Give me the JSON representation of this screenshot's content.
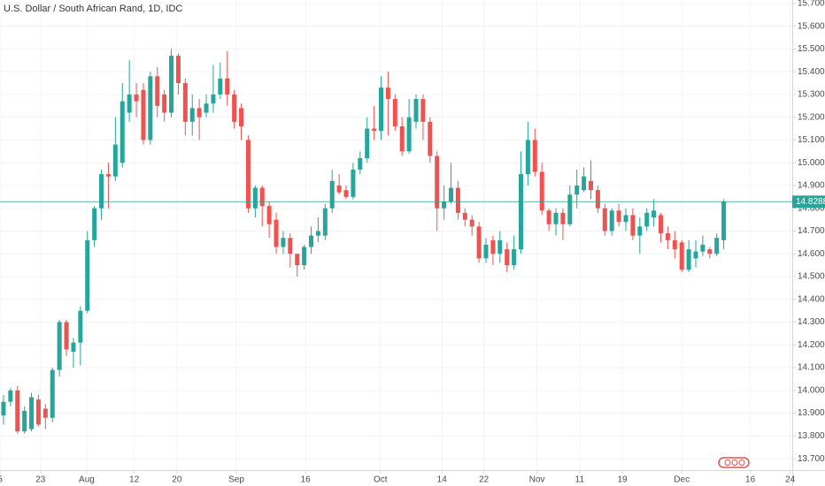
{
  "chart_data": {
    "type": "candlestick",
    "title": "U.S. Dollar / South African Rand, 1D, IDC",
    "up_color": "#26a69a",
    "down_color": "#ef5350",
    "grid": true,
    "candles": {
      "open": [
        13.89,
        13.95,
        14.0,
        13.82,
        13.83,
        13.96,
        13.92,
        13.88,
        14.09,
        14.3,
        14.17,
        14.21,
        14.35,
        14.66,
        14.8,
        14.95,
        14.94,
        15.0,
        15.22,
        15.3,
        15.32,
        15.1,
        15.38,
        15.3,
        15.22,
        15.47,
        15.35,
        15.18,
        15.24,
        15.22,
        15.26,
        15.3,
        15.37,
        15.3,
        15.24,
        15.1,
        14.8,
        14.89,
        14.81,
        14.75,
        14.63,
        14.67,
        14.6,
        14.55,
        14.63,
        14.68,
        14.68,
        14.8,
        14.9,
        14.88,
        14.85,
        14.97,
        15.02,
        15.15,
        15.14,
        15.33,
        15.28,
        15.16,
        15.05,
        15.18,
        15.28,
        15.18,
        15.03,
        14.8,
        14.83,
        14.89,
        14.78,
        14.75,
        14.72,
        14.58,
        14.66,
        14.6,
        14.62,
        14.55,
        14.62,
        14.95,
        15.1,
        14.96,
        14.79,
        14.73,
        14.78,
        14.73,
        14.86,
        14.88,
        14.92,
        14.88,
        14.8,
        14.7,
        14.79,
        14.74,
        14.77,
        14.68,
        14.72,
        14.76,
        14.77,
        14.69,
        14.66,
        14.65,
        14.53,
        14.58,
        14.61,
        14.62,
        14.6,
        14.66
      ],
      "high": [
        13.98,
        14.01,
        14.02,
        13.93,
        13.99,
        13.98,
        13.94,
        14.1,
        14.31,
        14.31,
        14.23,
        14.37,
        14.7,
        14.81,
        14.97,
        15.0,
        15.2,
        15.35,
        15.45,
        15.35,
        15.35,
        15.4,
        15.42,
        15.32,
        15.5,
        15.48,
        15.37,
        15.3,
        15.28,
        15.3,
        15.43,
        15.44,
        15.49,
        15.32,
        15.26,
        15.12,
        14.9,
        14.9,
        14.83,
        14.78,
        14.7,
        14.69,
        14.6,
        14.64,
        14.72,
        14.76,
        14.82,
        14.97,
        14.95,
        14.9,
        15.0,
        15.05,
        15.2,
        15.25,
        15.38,
        15.4,
        15.3,
        15.2,
        15.28,
        15.3,
        15.3,
        15.2,
        15.05,
        14.9,
        15.0,
        14.92,
        14.8,
        14.77,
        14.74,
        14.67,
        14.68,
        14.7,
        14.65,
        14.68,
        15.05,
        15.18,
        15.15,
        15.0,
        14.8,
        14.8,
        14.8,
        14.9,
        14.97,
        14.98,
        15.01,
        14.9,
        14.82,
        14.8,
        14.82,
        14.8,
        14.8,
        14.76,
        14.8,
        14.84,
        14.78,
        14.72,
        14.7,
        14.66,
        14.66,
        14.66,
        14.68,
        14.63,
        14.69,
        14.84
      ],
      "low": [
        13.85,
        13.93,
        13.81,
        13.81,
        13.82,
        13.84,
        13.83,
        13.86,
        14.06,
        14.15,
        14.1,
        14.11,
        14.34,
        14.63,
        14.75,
        14.8,
        14.92,
        14.98,
        15.18,
        15.2,
        15.08,
        15.08,
        15.2,
        15.18,
        15.2,
        15.3,
        15.12,
        15.12,
        15.1,
        15.2,
        15.22,
        15.28,
        15.25,
        15.15,
        15.1,
        14.78,
        14.76,
        14.72,
        14.67,
        14.6,
        14.6,
        14.54,
        14.5,
        14.53,
        14.6,
        14.65,
        14.66,
        14.78,
        14.86,
        14.84,
        14.84,
        14.95,
        15.0,
        15.1,
        15.1,
        15.12,
        15.14,
        15.03,
        15.04,
        15.15,
        15.1,
        15.0,
        14.7,
        14.75,
        14.82,
        14.75,
        14.72,
        14.68,
        14.56,
        14.56,
        14.55,
        14.56,
        14.52,
        14.53,
        14.6,
        14.9,
        14.94,
        14.77,
        14.7,
        14.68,
        14.66,
        14.72,
        14.8,
        14.87,
        14.84,
        14.78,
        14.68,
        14.68,
        14.72,
        14.7,
        14.66,
        14.6,
        14.7,
        14.72,
        14.65,
        14.62,
        14.58,
        14.52,
        14.52,
        14.54,
        14.59,
        14.58,
        14.59,
        14.62
      ],
      "close": [
        13.95,
        14.0,
        13.82,
        13.91,
        13.97,
        13.85,
        13.88,
        14.09,
        14.3,
        14.18,
        14.21,
        14.35,
        14.66,
        14.8,
        14.95,
        14.94,
        15.08,
        15.27,
        15.3,
        15.27,
        15.1,
        15.38,
        15.25,
        15.22,
        15.47,
        15.35,
        15.18,
        15.24,
        15.2,
        15.26,
        15.3,
        15.37,
        15.3,
        15.18,
        15.16,
        14.8,
        14.89,
        14.81,
        14.73,
        14.63,
        14.67,
        14.6,
        14.55,
        14.63,
        14.68,
        14.7,
        14.8,
        14.92,
        14.87,
        14.85,
        14.97,
        15.02,
        15.15,
        15.14,
        15.33,
        15.28,
        15.16,
        15.05,
        15.2,
        15.28,
        15.18,
        15.03,
        14.8,
        14.83,
        14.89,
        14.78,
        14.75,
        14.72,
        14.58,
        14.64,
        14.6,
        14.66,
        14.55,
        14.62,
        14.95,
        15.1,
        14.96,
        14.79,
        14.73,
        14.78,
        14.73,
        14.86,
        14.9,
        14.94,
        14.88,
        14.8,
        14.7,
        14.79,
        14.74,
        14.77,
        14.68,
        14.72,
        14.78,
        14.79,
        14.69,
        14.66,
        14.62,
        14.53,
        14.62,
        14.61,
        14.64,
        14.6,
        14.67,
        14.83
      ]
    },
    "xlim": [
      -0.5,
      112.8
    ],
    "xticks": [
      {
        "value": -0.5,
        "label": "5"
      },
      {
        "value": 5.3,
        "label": "23"
      },
      {
        "value": 11.9,
        "label": "Aug"
      },
      {
        "value": 18.7,
        "label": "12"
      },
      {
        "value": 24.8,
        "label": "20"
      },
      {
        "value": 33.3,
        "label": "Sep"
      },
      {
        "value": 43.2,
        "label": "16"
      },
      {
        "value": 53.9,
        "label": "Oct"
      },
      {
        "value": 62.7,
        "label": "14"
      },
      {
        "value": 68.7,
        "label": "22"
      },
      {
        "value": 76.3,
        "label": "Nov"
      },
      {
        "value": 82.4,
        "label": "11"
      },
      {
        "value": 88.5,
        "label": "19"
      },
      {
        "value": 97,
        "label": "Dec"
      },
      {
        "value": 106.8,
        "label": "16"
      },
      {
        "value": 112.5,
        "label": "24"
      }
    ],
    "ylim": [
      13.65,
      15.715
    ],
    "yticks": [
      {
        "value": 13.7,
        "label": "13.70000"
      },
      {
        "value": 13.8,
        "label": "13.80000"
      },
      {
        "value": 13.9,
        "label": "13.90000"
      },
      {
        "value": 14.0,
        "label": "14.00000"
      },
      {
        "value": 14.1,
        "label": "14.10000"
      },
      {
        "value": 14.2,
        "label": "14.20000"
      },
      {
        "value": 14.3,
        "label": "14.30000"
      },
      {
        "value": 14.4,
        "label": "14.40000"
      },
      {
        "value": 14.5,
        "label": "14.50000"
      },
      {
        "value": 14.6,
        "label": "14.60000"
      },
      {
        "value": 14.7,
        "label": "14.70000"
      },
      {
        "value": 14.8,
        "label": "14.80000"
      },
      {
        "value": 14.9,
        "label": "14.90000"
      },
      {
        "value": 15.0,
        "label": "15.00000"
      },
      {
        "value": 15.1,
        "label": "15.10000"
      },
      {
        "value": 15.2,
        "label": "15.20000"
      },
      {
        "value": 15.3,
        "label": "15.30000"
      },
      {
        "value": 15.4,
        "label": "15.40000"
      },
      {
        "value": 15.5,
        "label": "15.50000"
      },
      {
        "value": 15.6,
        "label": "15.60000"
      },
      {
        "value": 15.7,
        "label": "15.70000"
      }
    ],
    "last": {
      "value": 14.8288,
      "label": "14.82880"
    }
  }
}
